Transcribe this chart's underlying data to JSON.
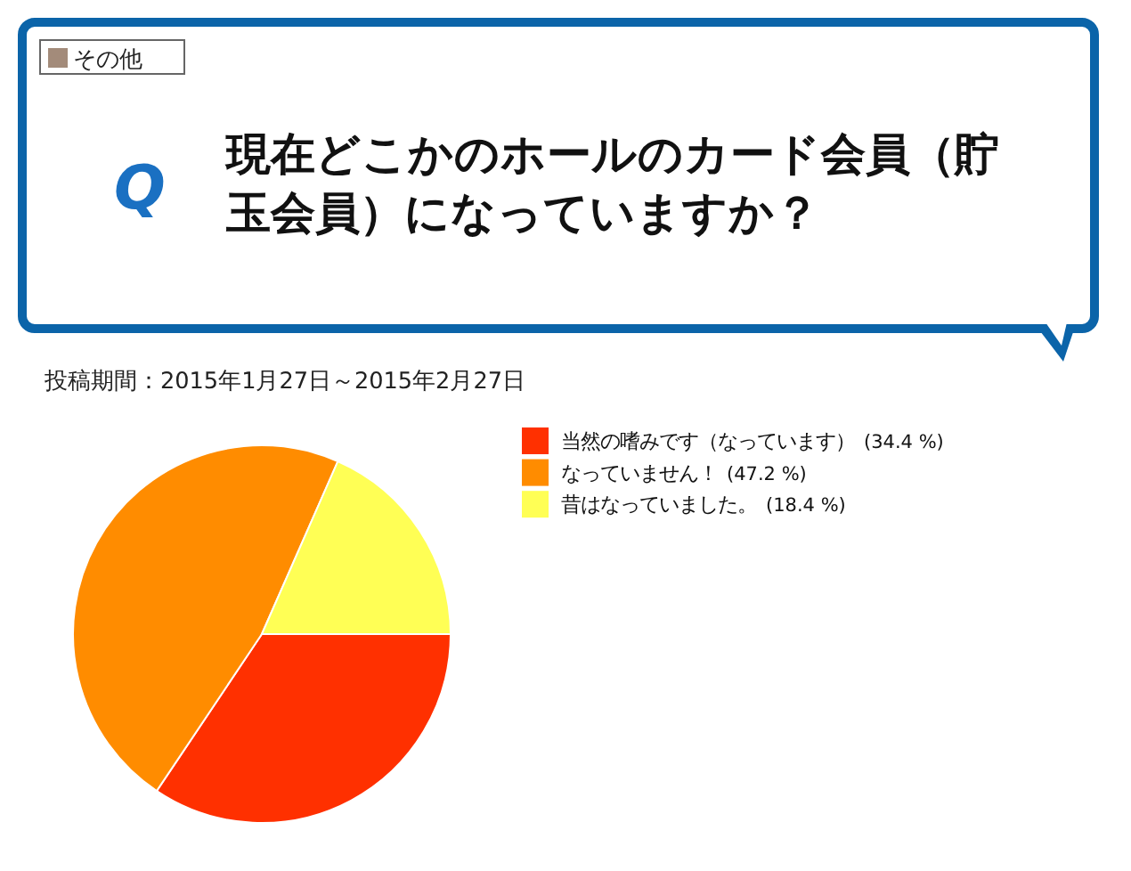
{
  "chart_data": {
    "type": "pie",
    "title": "現在どこかのホールのカード会員（貯玉会員）になっていますか？",
    "subtitle": "投稿期間：2015年1月27日～2015年2月27日",
    "annotations": [
      "その他",
      "Q"
    ],
    "categories": [
      "当然の嗜みです（なっています）",
      "なっていません！",
      "昔はなっていました。"
    ],
    "values": [
      34.4,
      47.2,
      18.4
    ],
    "colors": [
      "#ff3000",
      "#ff8c00",
      "#ffff55"
    ],
    "value_labels": [
      "(34.4 %)",
      "(47.2 %)",
      "(18.4 %)"
    ],
    "legend": "right"
  }
}
